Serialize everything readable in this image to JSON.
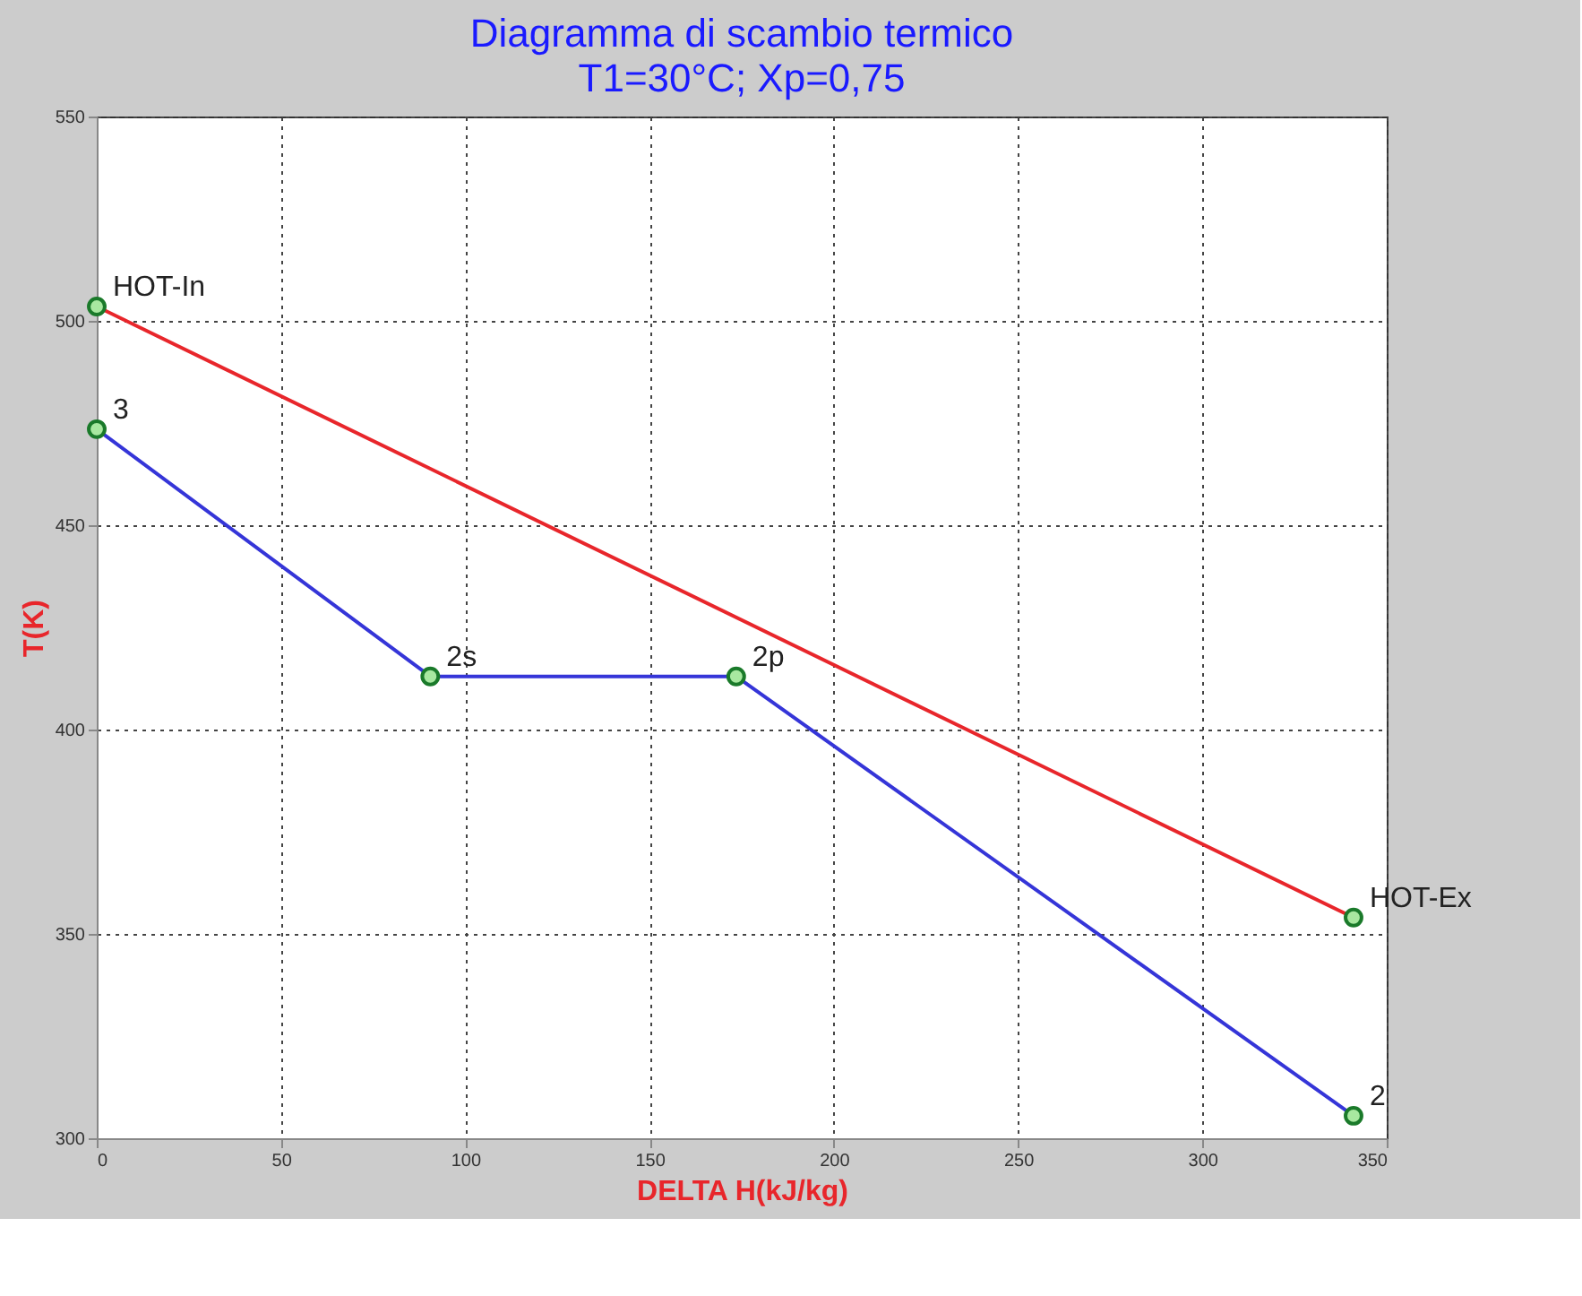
{
  "chart_data": {
    "type": "line",
    "title": "Diagramma di scambio termico",
    "subtitle": "T1=30°C; Xp=0,75",
    "xlabel": "DELTA H(kJ/kg)",
    "ylabel": "T(K)",
    "series": [
      {
        "color": "#e8262b",
        "x": [
          0,
          341
        ],
        "values": [
          503.5,
          354
        ]
      },
      {
        "color": "#3535d8",
        "x": [
          0,
          90.5,
          173.5,
          341
        ],
        "values": [
          473.5,
          413,
          413,
          305.5
        ]
      }
    ],
    "annotations": [
      {
        "text": "HOT-In",
        "x": 0,
        "y": 503.5
      },
      {
        "text": "3",
        "x": 0,
        "y": 473.5
      },
      {
        "text": "2s",
        "x": 90.5,
        "y": 413
      },
      {
        "text": "2p",
        "x": 173.5,
        "y": 413
      },
      {
        "text": "HOT-Ex",
        "x": 341,
        "y": 354
      },
      {
        "text": "2",
        "x": 341,
        "y": 305.5
      }
    ],
    "xlim": [
      0,
      350
    ],
    "xticks": [
      0,
      50,
      100,
      150,
      200,
      250,
      300,
      350
    ],
    "ylim": [
      300,
      550
    ],
    "yticks": [
      300,
      350,
      400,
      450,
      500,
      550
    ],
    "grid": true,
    "marker": "circle",
    "line_style": "solid"
  }
}
